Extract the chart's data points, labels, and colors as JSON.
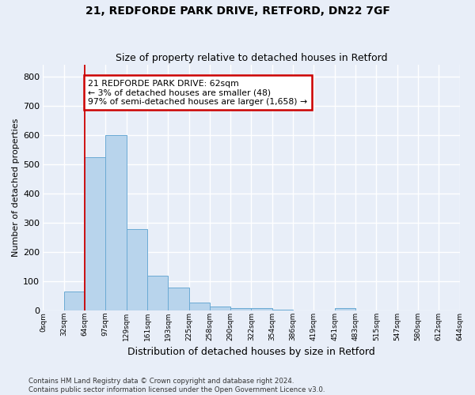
{
  "title": "21, REDFORDE PARK DRIVE, RETFORD, DN22 7GF",
  "subtitle": "Size of property relative to detached houses in Retford",
  "xlabel": "Distribution of detached houses by size in Retford",
  "ylabel": "Number of detached properties",
  "bin_labels": [
    "0sqm",
    "32sqm",
    "64sqm",
    "97sqm",
    "129sqm",
    "161sqm",
    "193sqm",
    "225sqm",
    "258sqm",
    "290sqm",
    "322sqm",
    "354sqm",
    "386sqm",
    "419sqm",
    "451sqm",
    "483sqm",
    "515sqm",
    "547sqm",
    "580sqm",
    "612sqm",
    "644sqm"
  ],
  "bar_heights": [
    0,
    65,
    525,
    600,
    280,
    120,
    78,
    27,
    15,
    10,
    10,
    5,
    0,
    0,
    10,
    0,
    0,
    0,
    0,
    0,
    0
  ],
  "bar_color": "#b8d4ec",
  "bar_edge_color": "#6aaad4",
  "ylim": [
    0,
    840
  ],
  "yticks": [
    0,
    100,
    200,
    300,
    400,
    500,
    600,
    700,
    800
  ],
  "red_line_bin": 2,
  "annotation_line1": "21 REDFORDE PARK DRIVE: 62sqm",
  "annotation_line2": "← 3% of detached houses are smaller (48)",
  "annotation_line3": "97% of semi-detached houses are larger (1,658) →",
  "annotation_box_fc": "#ffffff",
  "annotation_box_ec": "#cc0000",
  "footer_line1": "Contains HM Land Registry data © Crown copyright and database right 2024.",
  "footer_line2": "Contains public sector information licensed under the Open Government Licence v3.0.",
  "bg_color": "#e8eef8",
  "grid_color": "#ffffff",
  "title_fontsize": 10,
  "subtitle_fontsize": 9,
  "ylabel_fontsize": 8,
  "xlabel_fontsize": 9
}
